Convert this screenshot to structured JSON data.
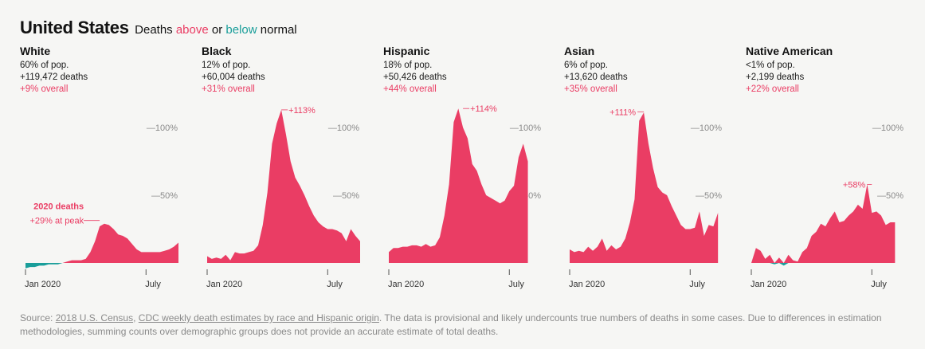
{
  "header": {
    "country": "United States",
    "subtitle_pre": "Deaths",
    "subtitle_above": "above",
    "subtitle_mid": "or",
    "subtitle_below": "below",
    "subtitle_post": "normal"
  },
  "colors": {
    "above": "#ea3d64",
    "below": "#1a9e9a",
    "axis": "#8a8a8a"
  },
  "source": {
    "prefix": "Source:",
    "link1": "2018 U.S. Census",
    "sep": ",",
    "link2": "CDC weekly death estimates by race and Hispanic origin",
    "rest": ". The data is provisional and likely undercounts true numbers of deaths in some cases. Due to differences in estimation methodologies, summing counts over demographic groups does not provide an accurate estimate of total deaths."
  },
  "chart_data": [
    {
      "type": "area",
      "title": "White",
      "share": "60% of pop.",
      "deaths": "+119,472 deaths",
      "overall": "+9% overall",
      "ylim": [
        -10,
        120
      ],
      "yticks": [
        {
          "value": 100,
          "label": "—100%"
        },
        {
          "value": 50,
          "label": "—50%"
        }
      ],
      "xticks": [
        {
          "week": 0,
          "label": "Jan 2020"
        },
        {
          "week": 26,
          "label": "July"
        }
      ],
      "peak_annotation": {
        "week": 16,
        "value": 29,
        "title": "2020 deaths",
        "label": "+29% at peak"
      },
      "values": [
        -4,
        -3,
        -3,
        -2,
        -2,
        -1,
        -1,
        -1,
        0,
        1,
        2,
        2,
        2,
        3,
        8,
        16,
        27,
        29,
        28,
        25,
        21,
        20,
        18,
        14,
        10,
        8,
        8,
        8,
        8,
        8,
        9,
        10,
        12,
        15
      ]
    },
    {
      "type": "area",
      "title": "Black",
      "share": "12% of pop.",
      "deaths": "+60,004 deaths",
      "overall": "+31% overall",
      "ylim": [
        -10,
        120
      ],
      "yticks": [
        {
          "value": 100,
          "label": "—100%"
        },
        {
          "value": 50,
          "label": "—50%"
        }
      ],
      "xticks": [
        {
          "week": 0,
          "label": "Jan 2020"
        },
        {
          "week": 26,
          "label": "July"
        }
      ],
      "peak_annotation": {
        "week": 16,
        "value": 113,
        "label": "+113%"
      },
      "values": [
        5,
        3,
        4,
        3,
        6,
        2,
        8,
        7,
        7,
        8,
        9,
        13,
        28,
        52,
        88,
        103,
        113,
        95,
        75,
        63,
        57,
        50,
        42,
        35,
        30,
        27,
        25,
        25,
        24,
        22,
        16,
        25,
        20,
        16
      ]
    },
    {
      "type": "area",
      "title": "Hispanic",
      "share": "18% of pop.",
      "deaths": "+50,426 deaths",
      "overall": "+44% overall",
      "ylim": [
        -10,
        120
      ],
      "yticks": [
        {
          "value": 100,
          "label": "—100%"
        },
        {
          "value": 50,
          "label": "—50%"
        }
      ],
      "xticks": [
        {
          "week": 0,
          "label": "Jan 2020"
        },
        {
          "week": 26,
          "label": "July"
        }
      ],
      "peak_annotation": {
        "week": 16,
        "value": 114,
        "label": "+114%"
      },
      "values": [
        8,
        11,
        11,
        12,
        12,
        13,
        13,
        12,
        14,
        12,
        13,
        19,
        35,
        58,
        104,
        114,
        100,
        92,
        73,
        68,
        58,
        50,
        48,
        46,
        44,
        46,
        53,
        57,
        78,
        88,
        75
      ]
    },
    {
      "type": "area",
      "title": "Asian",
      "share": "6% of pop.",
      "deaths": "+13,620 deaths",
      "overall": "+35% overall",
      "ylim": [
        -10,
        120
      ],
      "yticks": [
        {
          "value": 100,
          "label": "—100%"
        },
        {
          "value": 50,
          "label": "—50%"
        }
      ],
      "xticks": [
        {
          "week": 0,
          "label": "Jan 2020"
        },
        {
          "week": 26,
          "label": "July"
        }
      ],
      "peak_annotation": {
        "week": 16,
        "value": 111,
        "label": "+111%"
      },
      "values": [
        10,
        8,
        9,
        8,
        12,
        9,
        12,
        18,
        9,
        13,
        10,
        12,
        18,
        30,
        47,
        105,
        111,
        88,
        70,
        56,
        52,
        50,
        42,
        35,
        28,
        25,
        25,
        26,
        38,
        20,
        28,
        27,
        37
      ]
    },
    {
      "type": "area",
      "title": "Native American",
      "share": "<1% of pop.",
      "deaths": "+2,199 deaths",
      "overall": "+22% overall",
      "ylim": [
        -10,
        120
      ],
      "yticks": [
        {
          "value": 100,
          "label": "—100%"
        },
        {
          "value": 50,
          "label": "—50%"
        }
      ],
      "xticks": [
        {
          "week": 0,
          "label": "Jan 2020"
        },
        {
          "week": 26,
          "label": "July"
        }
      ],
      "peak_annotation": {
        "week": 26,
        "value": 58,
        "label": "+58%"
      },
      "values": [
        0,
        11,
        9,
        3,
        6,
        -1,
        4,
        -2,
        6,
        2,
        1,
        8,
        11,
        20,
        23,
        29,
        27,
        33,
        38,
        30,
        31,
        35,
        38,
        43,
        40,
        58,
        37,
        38,
        35,
        28,
        30,
        30
      ]
    }
  ]
}
